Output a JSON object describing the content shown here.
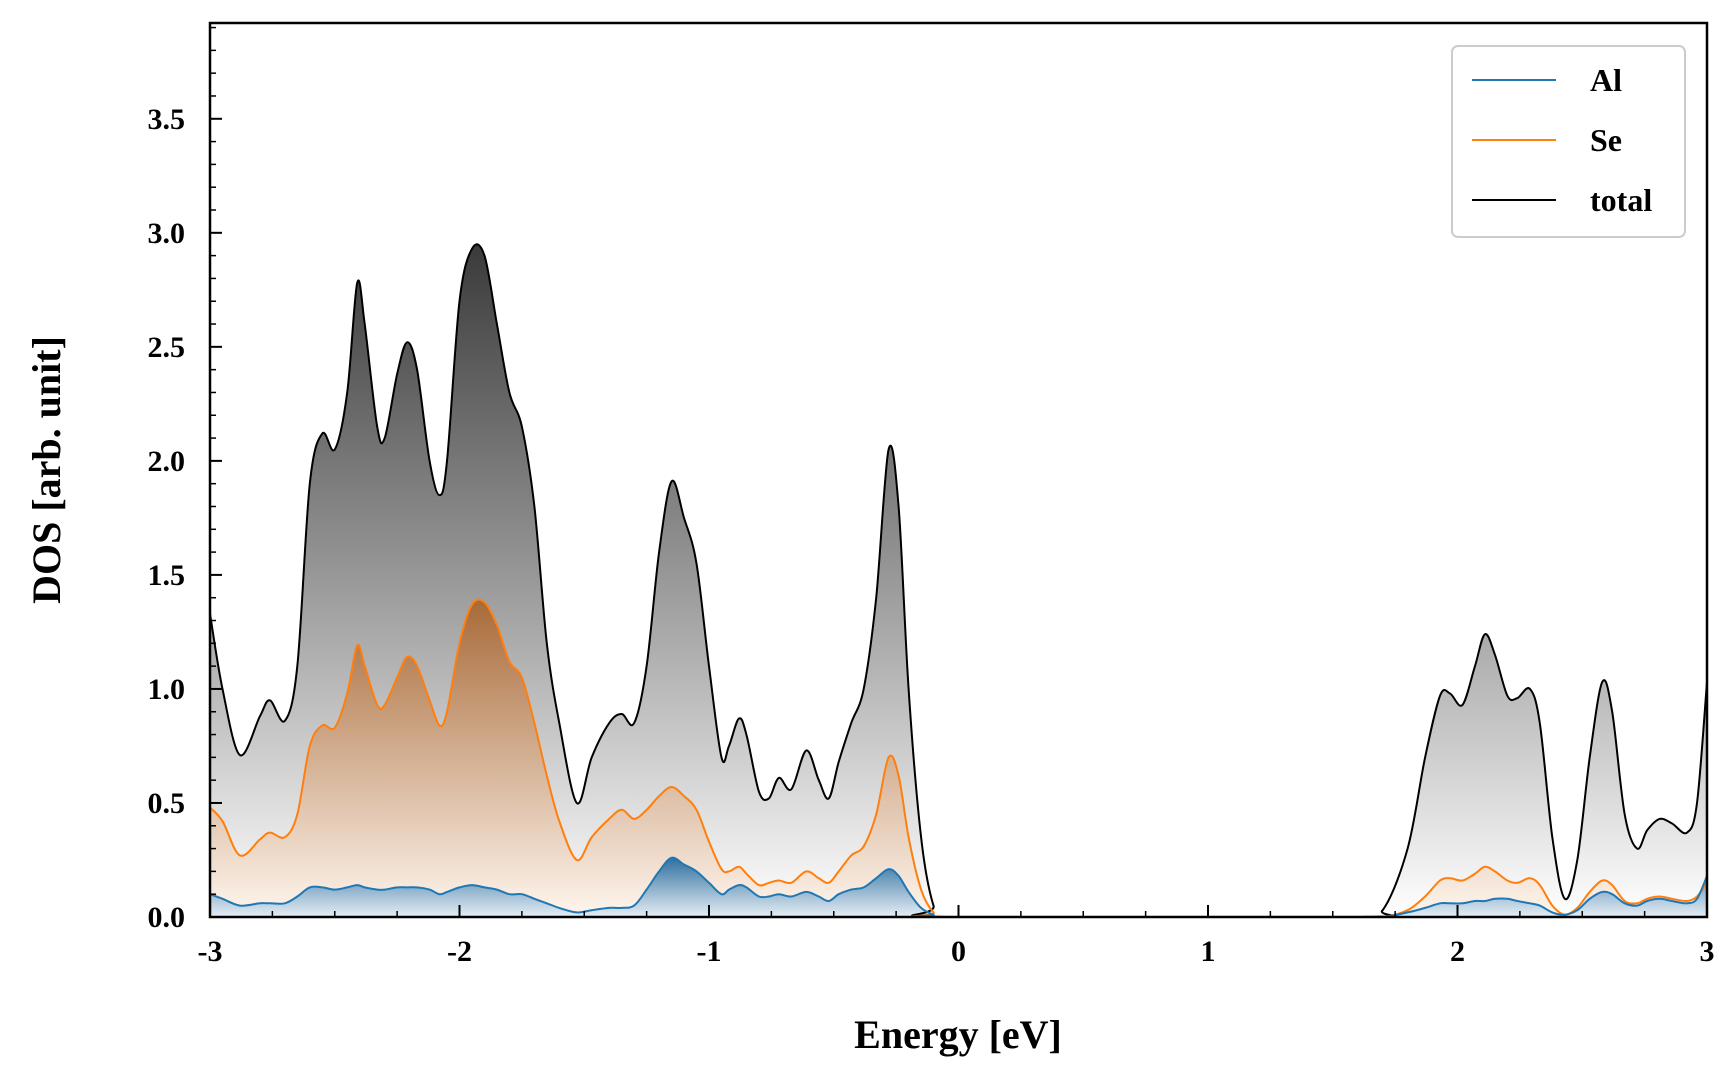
{
  "chart_data": {
    "type": "area",
    "title": "",
    "xlabel": "Energy [eV]",
    "ylabel": "DOS [arb. unit]",
    "xlim": [
      -3,
      3
    ],
    "ylim": [
      0,
      3.92
    ],
    "xticks": [
      -3,
      -2,
      -1,
      0,
      1,
      2,
      3
    ],
    "xtick_labels": [
      "-3",
      "-2",
      "-1",
      "0",
      "1",
      "2",
      "3"
    ],
    "yticks": [
      0,
      0.5,
      1,
      1.5,
      2,
      2.5,
      3,
      3.5
    ],
    "ytick_labels": [
      "0.0",
      "0.5",
      "1.0",
      "1.5",
      "2.0",
      "2.5",
      "3.0",
      "3.5"
    ],
    "grid": false,
    "legend_position": "top-right",
    "colors": {
      "Al": "#1f77b4",
      "Se": "#ff7f0e",
      "total": "#000000"
    },
    "series": [
      {
        "name": "total",
        "points": [
          [
            -3.0,
            1.33
          ],
          [
            -2.95,
            1.0
          ],
          [
            -2.88,
            0.71
          ],
          [
            -2.8,
            0.88
          ],
          [
            -2.76,
            0.95
          ],
          [
            -2.7,
            0.86
          ],
          [
            -2.65,
            1.1
          ],
          [
            -2.6,
            1.9
          ],
          [
            -2.55,
            2.12
          ],
          [
            -2.5,
            2.05
          ],
          [
            -2.45,
            2.3
          ],
          [
            -2.41,
            2.78
          ],
          [
            -2.38,
            2.6
          ],
          [
            -2.33,
            2.15
          ],
          [
            -2.3,
            2.1
          ],
          [
            -2.25,
            2.38
          ],
          [
            -2.21,
            2.52
          ],
          [
            -2.17,
            2.4
          ],
          [
            -2.12,
            2.0
          ],
          [
            -2.08,
            1.85
          ],
          [
            -2.05,
            2.0
          ],
          [
            -2.0,
            2.7
          ],
          [
            -1.95,
            2.93
          ],
          [
            -1.9,
            2.9
          ],
          [
            -1.85,
            2.6
          ],
          [
            -1.8,
            2.3
          ],
          [
            -1.75,
            2.15
          ],
          [
            -1.7,
            1.8
          ],
          [
            -1.65,
            1.2
          ],
          [
            -1.6,
            0.85
          ],
          [
            -1.53,
            0.5
          ],
          [
            -1.47,
            0.7
          ],
          [
            -1.4,
            0.85
          ],
          [
            -1.35,
            0.89
          ],
          [
            -1.3,
            0.85
          ],
          [
            -1.25,
            1.1
          ],
          [
            -1.2,
            1.6
          ],
          [
            -1.15,
            1.91
          ],
          [
            -1.1,
            1.75
          ],
          [
            -1.05,
            1.55
          ],
          [
            -1.0,
            1.1
          ],
          [
            -0.95,
            0.7
          ],
          [
            -0.92,
            0.75
          ],
          [
            -0.88,
            0.87
          ],
          [
            -0.85,
            0.8
          ],
          [
            -0.8,
            0.55
          ],
          [
            -0.76,
            0.52
          ],
          [
            -0.72,
            0.61
          ],
          [
            -0.67,
            0.56
          ],
          [
            -0.61,
            0.73
          ],
          [
            -0.56,
            0.6
          ],
          [
            -0.52,
            0.52
          ],
          [
            -0.48,
            0.68
          ],
          [
            -0.43,
            0.85
          ],
          [
            -0.38,
            1.0
          ],
          [
            -0.33,
            1.4
          ],
          [
            -0.28,
            2.05
          ],
          [
            -0.24,
            1.8
          ],
          [
            -0.2,
            1.0
          ],
          [
            -0.15,
            0.35
          ],
          [
            -0.1,
            0.05
          ],
          [
            -0.05,
            0.0
          ],
          [
            1.6,
            0.0
          ],
          [
            1.7,
            0.03
          ],
          [
            1.8,
            0.3
          ],
          [
            1.87,
            0.7
          ],
          [
            1.93,
            0.97
          ],
          [
            1.97,
            0.98
          ],
          [
            2.02,
            0.93
          ],
          [
            2.07,
            1.1
          ],
          [
            2.11,
            1.24
          ],
          [
            2.15,
            1.15
          ],
          [
            2.2,
            0.97
          ],
          [
            2.24,
            0.96
          ],
          [
            2.29,
            1.0
          ],
          [
            2.33,
            0.85
          ],
          [
            2.38,
            0.35
          ],
          [
            2.43,
            0.08
          ],
          [
            2.48,
            0.25
          ],
          [
            2.53,
            0.7
          ],
          [
            2.58,
            1.03
          ],
          [
            2.62,
            0.9
          ],
          [
            2.67,
            0.45
          ],
          [
            2.72,
            0.3
          ],
          [
            2.76,
            0.38
          ],
          [
            2.81,
            0.43
          ],
          [
            2.86,
            0.41
          ],
          [
            2.92,
            0.37
          ],
          [
            2.96,
            0.5
          ],
          [
            3.0,
            1.03
          ]
        ]
      },
      {
        "name": "Se",
        "points": [
          [
            -3.0,
            0.48
          ],
          [
            -2.95,
            0.42
          ],
          [
            -2.88,
            0.27
          ],
          [
            -2.8,
            0.34
          ],
          [
            -2.76,
            0.37
          ],
          [
            -2.7,
            0.35
          ],
          [
            -2.65,
            0.45
          ],
          [
            -2.6,
            0.75
          ],
          [
            -2.55,
            0.84
          ],
          [
            -2.5,
            0.83
          ],
          [
            -2.45,
            0.98
          ],
          [
            -2.41,
            1.19
          ],
          [
            -2.38,
            1.1
          ],
          [
            -2.33,
            0.93
          ],
          [
            -2.3,
            0.93
          ],
          [
            -2.25,
            1.05
          ],
          [
            -2.21,
            1.14
          ],
          [
            -2.17,
            1.1
          ],
          [
            -2.12,
            0.95
          ],
          [
            -2.08,
            0.84
          ],
          [
            -2.05,
            0.9
          ],
          [
            -2.0,
            1.2
          ],
          [
            -1.95,
            1.37
          ],
          [
            -1.9,
            1.38
          ],
          [
            -1.85,
            1.28
          ],
          [
            -1.8,
            1.12
          ],
          [
            -1.75,
            1.05
          ],
          [
            -1.7,
            0.85
          ],
          [
            -1.65,
            0.62
          ],
          [
            -1.6,
            0.42
          ],
          [
            -1.53,
            0.25
          ],
          [
            -1.47,
            0.35
          ],
          [
            -1.4,
            0.43
          ],
          [
            -1.35,
            0.47
          ],
          [
            -1.3,
            0.43
          ],
          [
            -1.25,
            0.47
          ],
          [
            -1.2,
            0.53
          ],
          [
            -1.15,
            0.57
          ],
          [
            -1.1,
            0.53
          ],
          [
            -1.05,
            0.47
          ],
          [
            -1.0,
            0.33
          ],
          [
            -0.95,
            0.21
          ],
          [
            -0.92,
            0.2
          ],
          [
            -0.88,
            0.22
          ],
          [
            -0.85,
            0.19
          ],
          [
            -0.8,
            0.14
          ],
          [
            -0.76,
            0.15
          ],
          [
            -0.72,
            0.16
          ],
          [
            -0.67,
            0.15
          ],
          [
            -0.61,
            0.2
          ],
          [
            -0.56,
            0.17
          ],
          [
            -0.52,
            0.15
          ],
          [
            -0.48,
            0.2
          ],
          [
            -0.43,
            0.27
          ],
          [
            -0.38,
            0.31
          ],
          [
            -0.33,
            0.45
          ],
          [
            -0.28,
            0.7
          ],
          [
            -0.24,
            0.62
          ],
          [
            -0.2,
            0.35
          ],
          [
            -0.15,
            0.12
          ],
          [
            -0.1,
            0.02
          ],
          [
            -0.05,
            0.0
          ],
          [
            1.6,
            0.0
          ],
          [
            1.7,
            0.0
          ],
          [
            1.8,
            0.03
          ],
          [
            1.87,
            0.09
          ],
          [
            1.93,
            0.16
          ],
          [
            1.97,
            0.17
          ],
          [
            2.02,
            0.16
          ],
          [
            2.07,
            0.19
          ],
          [
            2.11,
            0.22
          ],
          [
            2.15,
            0.2
          ],
          [
            2.2,
            0.16
          ],
          [
            2.24,
            0.15
          ],
          [
            2.29,
            0.17
          ],
          [
            2.33,
            0.14
          ],
          [
            2.38,
            0.05
          ],
          [
            2.43,
            0.01
          ],
          [
            2.48,
            0.04
          ],
          [
            2.53,
            0.11
          ],
          [
            2.58,
            0.16
          ],
          [
            2.62,
            0.14
          ],
          [
            2.67,
            0.07
          ],
          [
            2.72,
            0.06
          ],
          [
            2.76,
            0.08
          ],
          [
            2.81,
            0.09
          ],
          [
            2.86,
            0.08
          ],
          [
            2.92,
            0.07
          ],
          [
            2.96,
            0.09
          ],
          [
            3.0,
            0.15
          ]
        ]
      },
      {
        "name": "Al",
        "points": [
          [
            -3.0,
            0.1
          ],
          [
            -2.95,
            0.08
          ],
          [
            -2.88,
            0.05
          ],
          [
            -2.8,
            0.06
          ],
          [
            -2.76,
            0.06
          ],
          [
            -2.7,
            0.06
          ],
          [
            -2.65,
            0.09
          ],
          [
            -2.6,
            0.13
          ],
          [
            -2.55,
            0.13
          ],
          [
            -2.5,
            0.12
          ],
          [
            -2.45,
            0.13
          ],
          [
            -2.41,
            0.14
          ],
          [
            -2.38,
            0.13
          ],
          [
            -2.33,
            0.12
          ],
          [
            -2.3,
            0.12
          ],
          [
            -2.25,
            0.13
          ],
          [
            -2.21,
            0.13
          ],
          [
            -2.17,
            0.13
          ],
          [
            -2.12,
            0.12
          ],
          [
            -2.08,
            0.1
          ],
          [
            -2.05,
            0.11
          ],
          [
            -2.0,
            0.13
          ],
          [
            -1.95,
            0.14
          ],
          [
            -1.9,
            0.13
          ],
          [
            -1.85,
            0.12
          ],
          [
            -1.8,
            0.1
          ],
          [
            -1.75,
            0.1
          ],
          [
            -1.7,
            0.08
          ],
          [
            -1.65,
            0.06
          ],
          [
            -1.6,
            0.04
          ],
          [
            -1.53,
            0.02
          ],
          [
            -1.47,
            0.03
          ],
          [
            -1.4,
            0.04
          ],
          [
            -1.35,
            0.04
          ],
          [
            -1.3,
            0.05
          ],
          [
            -1.25,
            0.12
          ],
          [
            -1.2,
            0.2
          ],
          [
            -1.15,
            0.26
          ],
          [
            -1.1,
            0.23
          ],
          [
            -1.05,
            0.2
          ],
          [
            -1.0,
            0.15
          ],
          [
            -0.95,
            0.1
          ],
          [
            -0.92,
            0.12
          ],
          [
            -0.88,
            0.14
          ],
          [
            -0.85,
            0.13
          ],
          [
            -0.8,
            0.09
          ],
          [
            -0.76,
            0.09
          ],
          [
            -0.72,
            0.1
          ],
          [
            -0.67,
            0.09
          ],
          [
            -0.61,
            0.11
          ],
          [
            -0.56,
            0.09
          ],
          [
            -0.52,
            0.07
          ],
          [
            -0.48,
            0.1
          ],
          [
            -0.43,
            0.12
          ],
          [
            -0.38,
            0.13
          ],
          [
            -0.33,
            0.17
          ],
          [
            -0.28,
            0.21
          ],
          [
            -0.24,
            0.18
          ],
          [
            -0.2,
            0.11
          ],
          [
            -0.15,
            0.04
          ],
          [
            -0.1,
            0.01
          ],
          [
            -0.05,
            0.0
          ],
          [
            1.6,
            0.0
          ],
          [
            1.7,
            0.0
          ],
          [
            1.8,
            0.02
          ],
          [
            1.87,
            0.04
          ],
          [
            1.93,
            0.06
          ],
          [
            1.97,
            0.06
          ],
          [
            2.02,
            0.06
          ],
          [
            2.07,
            0.07
          ],
          [
            2.11,
            0.07
          ],
          [
            2.15,
            0.08
          ],
          [
            2.2,
            0.08
          ],
          [
            2.24,
            0.07
          ],
          [
            2.29,
            0.06
          ],
          [
            2.33,
            0.05
          ],
          [
            2.38,
            0.02
          ],
          [
            2.43,
            0.01
          ],
          [
            2.48,
            0.03
          ],
          [
            2.53,
            0.08
          ],
          [
            2.58,
            0.11
          ],
          [
            2.62,
            0.1
          ],
          [
            2.67,
            0.06
          ],
          [
            2.72,
            0.05
          ],
          [
            2.76,
            0.07
          ],
          [
            2.81,
            0.08
          ],
          [
            2.86,
            0.07
          ],
          [
            2.92,
            0.06
          ],
          [
            2.96,
            0.08
          ],
          [
            3.0,
            0.18
          ]
        ]
      }
    ],
    "legend": [
      "Al",
      "Se",
      "total"
    ]
  }
}
